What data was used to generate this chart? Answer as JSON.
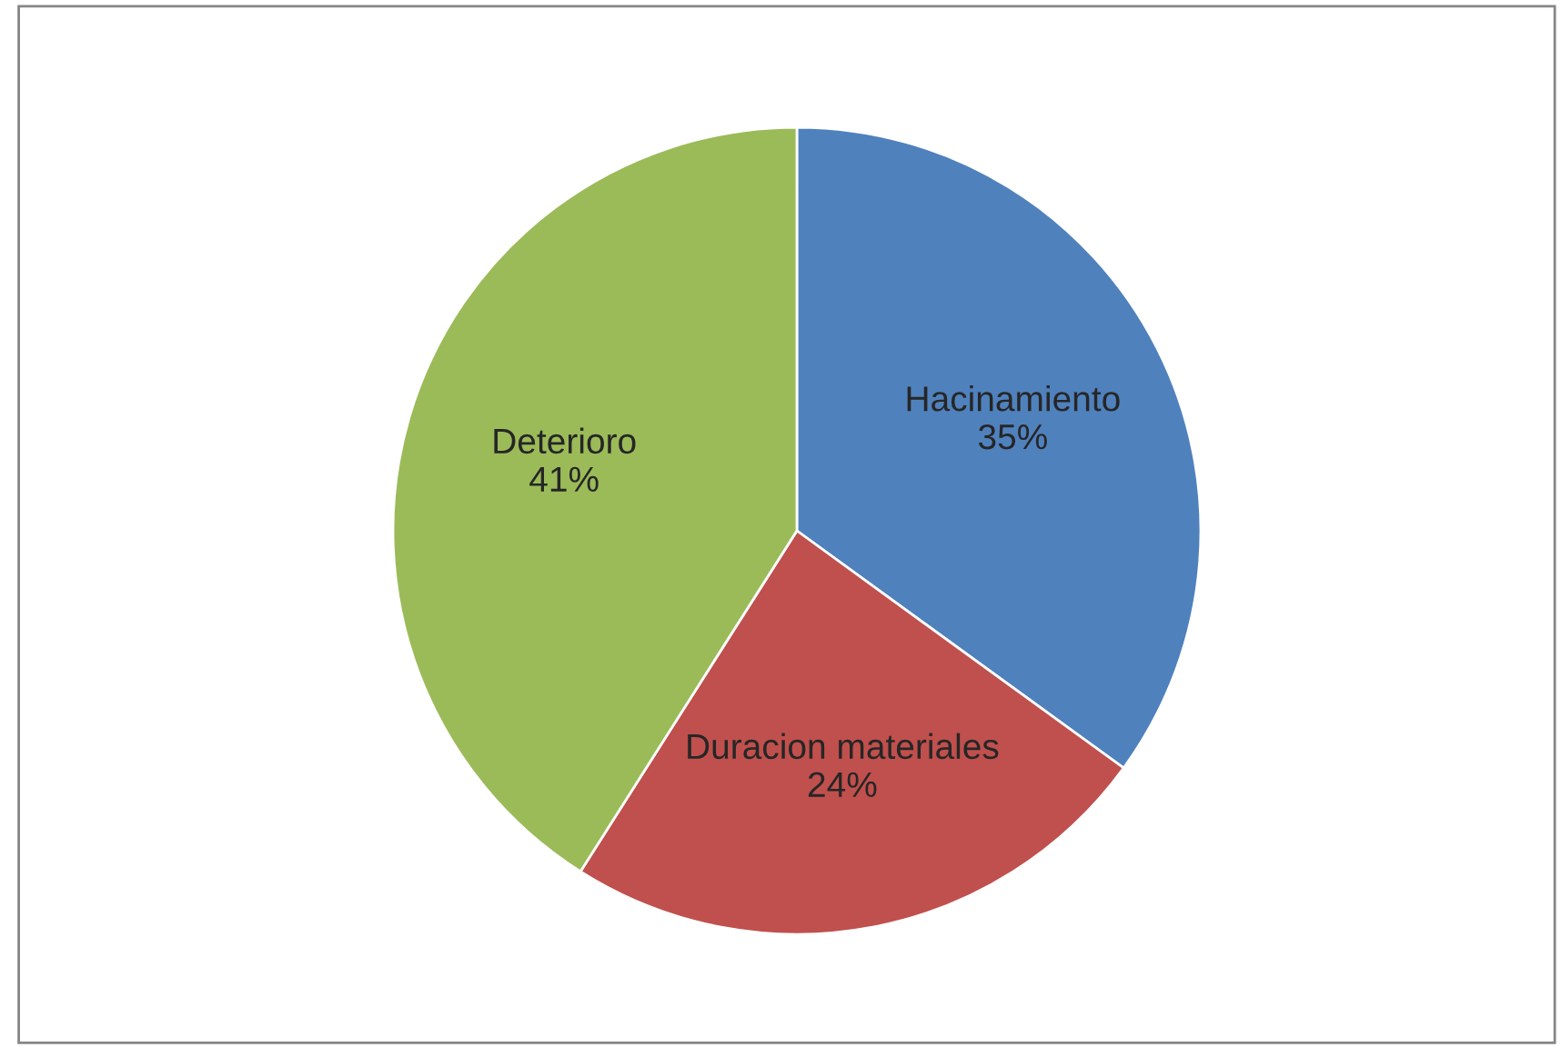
{
  "chart_data": {
    "type": "pie",
    "categories": [
      "Hacinamiento",
      "Duracion materiales",
      "Deterioro"
    ],
    "values": [
      35,
      24,
      41
    ],
    "value_labels": [
      "35%",
      "24%",
      "41%"
    ],
    "colors": [
      "#4f81bd",
      "#c0504d",
      "#9bbb59"
    ],
    "legend": false
  }
}
